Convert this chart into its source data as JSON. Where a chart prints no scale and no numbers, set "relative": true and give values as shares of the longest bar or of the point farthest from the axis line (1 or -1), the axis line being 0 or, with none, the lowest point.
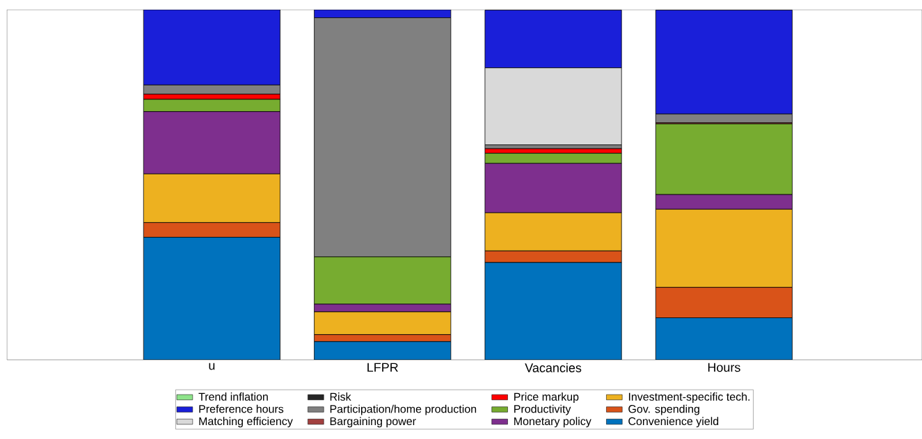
{
  "chart_data": {
    "type": "bar",
    "stacked": true,
    "relative": true,
    "legend": "bottom",
    "categories": [
      "u",
      "LFPR",
      "Vacancies",
      "Hours"
    ],
    "series": [
      {
        "name": "Convenience yield",
        "color": "#0072bd",
        "values": [
          0.35,
          0.052,
          0.278,
          0.12
        ]
      },
      {
        "name": "Gov. spending",
        "color": "#d95319",
        "values": [
          0.042,
          0.02,
          0.033,
          0.087
        ]
      },
      {
        "name": "Investment-specific tech.",
        "color": "#edb120",
        "values": [
          0.139,
          0.065,
          0.109,
          0.223
        ]
      },
      {
        "name": "Monetary policy",
        "color": "#7e2f8e",
        "values": [
          0.178,
          0.022,
          0.141,
          0.042
        ]
      },
      {
        "name": "Productivity",
        "color": "#77ac30",
        "values": [
          0.035,
          0.135,
          0.029,
          0.202
        ]
      },
      {
        "name": "Price markup",
        "color": "#ff0000",
        "values": [
          0.015,
          0,
          0.013,
          0
        ]
      },
      {
        "name": "Bargaining power",
        "color": "#a2403f",
        "values": [
          0,
          0,
          0,
          0.003
        ]
      },
      {
        "name": "Participation/home production",
        "color": "#808080",
        "values": [
          0.026,
          0.683,
          0.011,
          0.025
        ]
      },
      {
        "name": "Risk",
        "color": "#262626",
        "values": [
          0,
          0,
          0,
          0
        ]
      },
      {
        "name": "Matching efficiency",
        "color": "#d9d9d9",
        "values": [
          0,
          0,
          0.22,
          0
        ]
      },
      {
        "name": "Preference hours",
        "color": "#1a1fd9",
        "values": [
          0.215,
          0.023,
          0.165,
          0.297
        ]
      },
      {
        "name": "Trend inflation",
        "color": "#8ee38a",
        "values": [
          0,
          0,
          0,
          0
        ]
      }
    ]
  }
}
